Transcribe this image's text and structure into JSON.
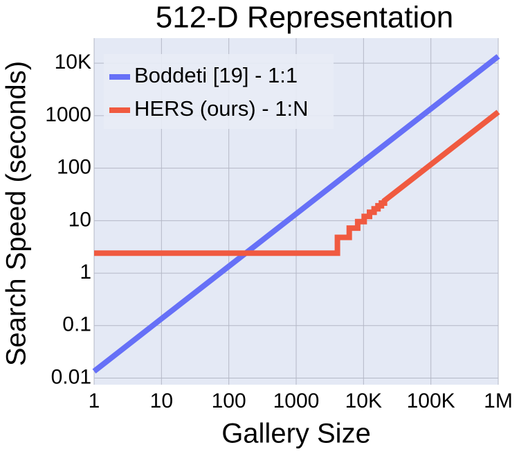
{
  "chart_data": {
    "type": "line",
    "title": "512-D Representation",
    "x_label": "Gallery Size",
    "y_label": "Search Speed (seconds)",
    "x_scale": "log",
    "y_scale": "log",
    "grid": true,
    "legend": "upper-left",
    "xlim": [
      1,
      1000000
    ],
    "ylim": [
      0.0075,
      30000
    ],
    "xticks": [
      1,
      10,
      100,
      1000,
      {
        "value": 10000,
        "label": "10K"
      },
      {
        "value": 100000,
        "label": "100K"
      },
      {
        "value": 1000000,
        "label": "1M"
      }
    ],
    "yticks": [
      0.01,
      0.1,
      1,
      10,
      100,
      1000,
      {
        "value": 10000,
        "label": "10K"
      }
    ],
    "series": [
      {
        "name": "Boddeti [19] - 1:1",
        "color": "#6670f7",
        "x": [
          1,
          10,
          100,
          1000,
          10000,
          100000,
          1000000
        ],
        "values": [
          0.0135,
          0.135,
          1.35,
          13.5,
          135,
          1350,
          13500
        ]
      },
      {
        "name": "HERS (ours) - 1:N",
        "color": "#f05a40",
        "x": [
          1,
          4096,
          4096,
          6144,
          6144,
          8192,
          8192,
          10240,
          10240,
          12288,
          12288,
          14336,
          14336,
          16384,
          16384,
          18432,
          18432,
          20480,
          20480,
          1000000
        ],
        "values": [
          2.4,
          2.4,
          4.8,
          4.8,
          7.2,
          7.2,
          9.6,
          9.6,
          12,
          12,
          14.4,
          14.4,
          16.8,
          16.8,
          19.2,
          19.2,
          21.6,
          21.6,
          24,
          1172
        ]
      }
    ]
  }
}
